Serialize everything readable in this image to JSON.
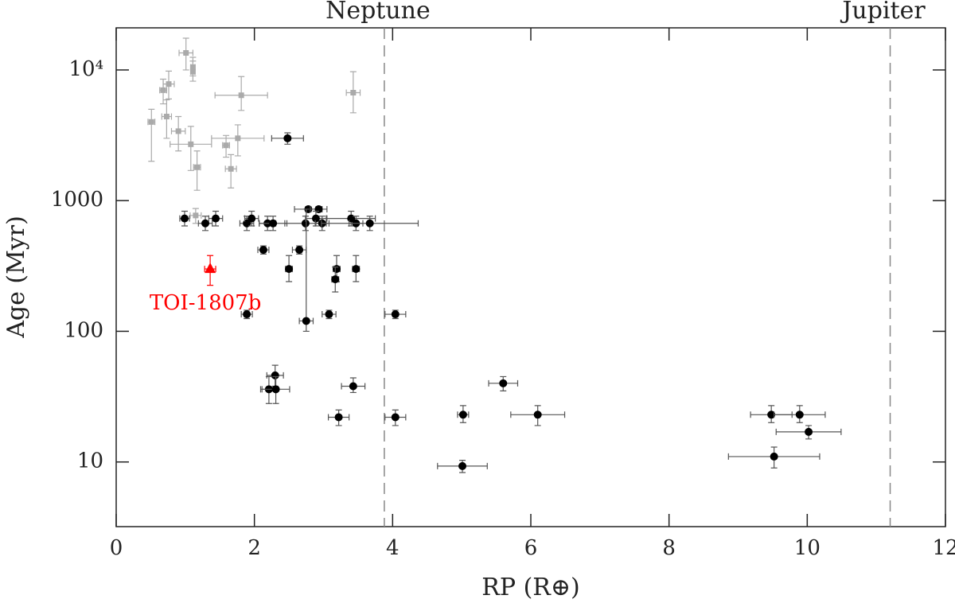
{
  "chart_data": {
    "type": "scatter",
    "log_y": true,
    "xlabel": "RP (R⊕)",
    "ylabel": "Age (Myr)",
    "xlim": [
      0,
      12
    ],
    "xticks": [
      0,
      2,
      4,
      6,
      8,
      10,
      12
    ],
    "ylim": [
      3.2,
      21000
    ],
    "yticks": [
      10,
      100,
      1000,
      {
        "value": 10000,
        "label": "10⁴"
      }
    ],
    "vlines": [
      {
        "x": 3.88,
        "label": "Neptune"
      },
      {
        "x": 11.2,
        "label": "Jupiter"
      }
    ],
    "series": [
      {
        "color": "#aaaaaa",
        "marker": "square",
        "x": [
          1.01,
          1.11,
          1.11,
          0.76,
          0.68,
          1.81,
          3.43,
          0.73,
          0.51,
          0.9,
          1.76,
          1.08,
          1.59,
          1.17,
          1.66,
          1.15
        ],
        "values": [
          13500,
          10500,
          9700,
          7800,
          7000,
          6400,
          6700,
          4400,
          4000,
          3400,
          3000,
          2700,
          2650,
          1800,
          1750,
          770
        ],
        "xerr": [
          0.1,
          0.03,
          0.03,
          0.08,
          0.05,
          0.38,
          0.1,
          0.07,
          0.05,
          0.1,
          0.38,
          0.3,
          0.05,
          0.05,
          0.08,
          0.08
        ],
        "yerr_low": [
          3500,
          1500,
          1500,
          1800,
          1500,
          1500,
          2000,
          1400,
          2000,
          1000,
          800,
          1000,
          500,
          600,
          500,
          100
        ],
        "yerr_high": [
          4000,
          2000,
          2000,
          2000,
          1500,
          2500,
          3000,
          1500,
          1000,
          1000,
          800,
          1000,
          500,
          600,
          500,
          100
        ]
      },
      {
        "color": "#000000",
        "marker": "circle",
        "x": [
          2.48,
          0.99,
          1.29,
          1.44,
          1.89,
          1.96,
          2.19,
          2.27,
          2.78,
          2.93,
          2.74,
          2.89,
          2.98,
          2.13,
          2.65,
          2.5,
          3.19,
          3.17,
          3.47,
          3.4,
          3.47,
          3.67,
          1.89,
          3.08,
          4.04,
          2.75,
          2.3,
          2.21,
          2.31,
          3.43,
          3.22,
          4.04,
          5.02,
          5.6,
          6.1,
          5.01,
          9.48,
          9.89,
          10.02,
          9.52
        ],
        "values": [
          3000,
          730,
          670,
          730,
          670,
          730,
          670,
          670,
          860,
          860,
          670,
          730,
          670,
          420,
          420,
          300,
          300,
          250,
          300,
          730,
          670,
          670,
          135,
          135,
          135,
          120,
          46,
          36,
          36,
          38,
          22,
          22,
          23,
          40,
          23,
          9.3,
          23,
          23,
          17,
          11
        ],
        "xerr": [
          0.23,
          0.07,
          0.1,
          0.1,
          0.1,
          0.1,
          0.12,
          0.2,
          0.2,
          0.12,
          0.3,
          0.15,
          0.1,
          0.08,
          0.1,
          0.05,
          0.05,
          0.05,
          0.05,
          0.35,
          0.1,
          0.7,
          0.08,
          0.1,
          0.15,
          0.1,
          0.12,
          0.12,
          0.2,
          0.17,
          0.15,
          0.15,
          0.08,
          0.21,
          0.39,
          0.36,
          0.3,
          0.37,
          0.47,
          0.66
        ],
        "yerr_low": [
          300,
          90,
          80,
          90,
          80,
          90,
          80,
          80,
          40,
          40,
          80,
          90,
          80,
          30,
          30,
          60,
          60,
          50,
          60,
          90,
          80,
          80,
          10,
          10,
          10,
          20,
          8,
          8,
          8,
          4,
          3,
          3,
          3,
          5,
          4,
          1,
          3,
          3,
          2,
          2
        ],
        "yerr_high": [
          300,
          100,
          90,
          100,
          90,
          100,
          90,
          90,
          40,
          40,
          90,
          100,
          90,
          30,
          30,
          80,
          80,
          60,
          80,
          100,
          90,
          90,
          10,
          10,
          10,
          740,
          9,
          9,
          9,
          6,
          3,
          3,
          4,
          5,
          4,
          1,
          4,
          4,
          2,
          2
        ]
      },
      {
        "name": "TOI-1807b",
        "color": "#ff0000",
        "marker": "triangle",
        "x": [
          1.36
        ],
        "values": [
          300
        ],
        "xerr": [
          0.08
        ],
        "yerr_low": [
          75
        ],
        "yerr_high": [
          80
        ]
      }
    ]
  }
}
